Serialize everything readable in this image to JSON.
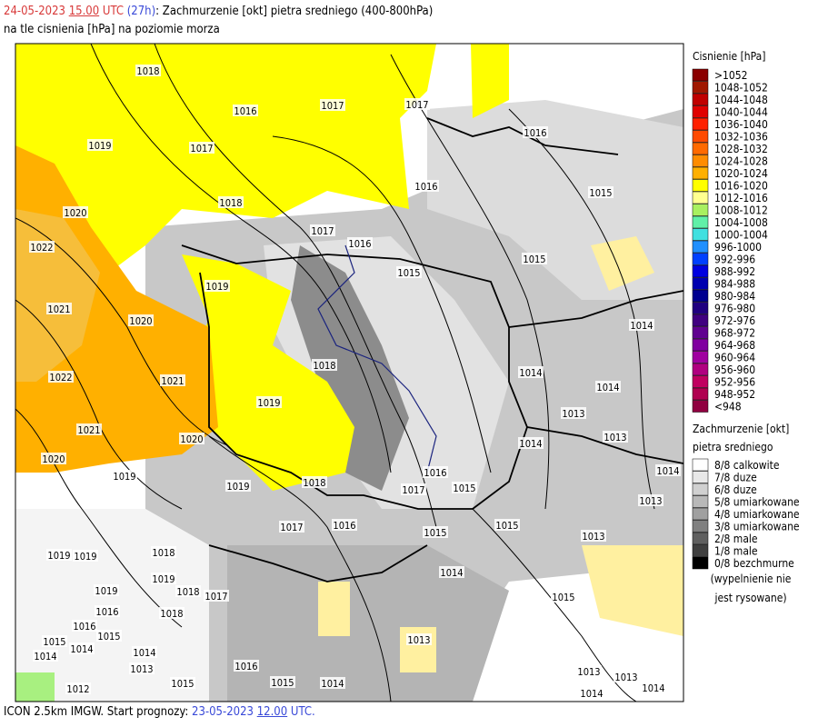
{
  "header": {
    "date": "24-05-2023",
    "time": "15.00",
    "tz": "UTC",
    "lead": "(27h)",
    "title": ": Zachmurzenie [okt] pietra sredniego (400-800hPa)",
    "subtitle": "na tle cisnienia [hPa] na poziomie morza"
  },
  "footer": {
    "model": "ICON 2.5km IMGW. Start prognozy:",
    "start_date": "23-05-2023",
    "start_time": "12.00",
    "tz": "UTC."
  },
  "isobar_labels": [
    "1018",
    "1016",
    "1017",
    "1017",
    "1016",
    "1019",
    "1017",
    "1016",
    "1015",
    "1018",
    "1020",
    "1017",
    "1016",
    "1022",
    "1015",
    "1015",
    "1019",
    "1021",
    "1020",
    "1014",
    "1018",
    "1022",
    "1021",
    "1014",
    "1014",
    "1019",
    "1013",
    "1021",
    "1020",
    "1013",
    "1014",
    "1020",
    "1019",
    "1016",
    "1014",
    "1019",
    "1018",
    "1017",
    "1015",
    "1013",
    "1017",
    "1016",
    "1015",
    "1015",
    "1013",
    "1019",
    "1019",
    "1018",
    "1014",
    "1019",
    "1019",
    "1018",
    "1017",
    "1015",
    "1016",
    "1018",
    "1016",
    "1015",
    "1013",
    "1015",
    "1014",
    "1014",
    "1014",
    "1013",
    "1016",
    "1015",
    "1015",
    "1014",
    "1013",
    "1013",
    "1012",
    "1014",
    "1014"
  ],
  "pressure_legend": {
    "title": "Cisnienie [hPa]",
    "items": [
      {
        "label": ">1052",
        "color": "#8b0000"
      },
      {
        "label": "1048-1052",
        "color": "#a01800"
      },
      {
        "label": "1044-1048",
        "color": "#c00000"
      },
      {
        "label": "1040-1044",
        "color": "#e00000"
      },
      {
        "label": "1036-1040",
        "color": "#ff2000"
      },
      {
        "label": "1032-1036",
        "color": "#ff4a00"
      },
      {
        "label": "1028-1032",
        "color": "#ff6a00"
      },
      {
        "label": "1024-1028",
        "color": "#ff8c00"
      },
      {
        "label": "1020-1024",
        "color": "#ffb000"
      },
      {
        "label": "1016-1020",
        "color": "#ffff00"
      },
      {
        "label": "1012-1016",
        "color": "#ffff90"
      },
      {
        "label": "1008-1012",
        "color": "#a8f060"
      },
      {
        "label": "1004-1008",
        "color": "#60f0a8"
      },
      {
        "label": "1000-1004",
        "color": "#40e0e0"
      },
      {
        "label": "996-1000",
        "color": "#2090ff"
      },
      {
        "label": "992-996",
        "color": "#0040ff"
      },
      {
        "label": "988-992",
        "color": "#0000e0"
      },
      {
        "label": "984-988",
        "color": "#0000b0"
      },
      {
        "label": "980-984",
        "color": "#000090"
      },
      {
        "label": "976-980",
        "color": "#200080"
      },
      {
        "label": "972-976",
        "color": "#400080"
      },
      {
        "label": "968-972",
        "color": "#600090"
      },
      {
        "label": "964-968",
        "color": "#8000a0"
      },
      {
        "label": "960-964",
        "color": "#a000a0"
      },
      {
        "label": "956-960",
        "color": "#b00080"
      },
      {
        "label": "952-956",
        "color": "#c00060"
      },
      {
        "label": "948-952",
        "color": "#b00050"
      },
      {
        "label": "<948",
        "color": "#900040"
      }
    ]
  },
  "cloud_legend": {
    "title": [
      "Zachmurzenie [okt]",
      "pietra sredniego"
    ],
    "items": [
      {
        "label": "8/8 calkowite",
        "color": "#ffffff"
      },
      {
        "label": "7/8 duze",
        "color": "#e8e8e8"
      },
      {
        "label": "6/8 duze",
        "color": "#d0d0d0"
      },
      {
        "label": "5/8 umiarkowane",
        "color": "#b8b8b8"
      },
      {
        "label": "4/8 umiarkowane",
        "color": "#a0a0a0"
      },
      {
        "label": "3/8 umiarkowane",
        "color": "#808080"
      },
      {
        "label": "2/8 male",
        "color": "#606060"
      },
      {
        "label": "1/8 male",
        "color": "#404040"
      },
      {
        "label": "0/8 bezchmurne",
        "color": "#000000"
      }
    ],
    "note": [
      "(wypelnienie nie",
      "jest rysowane)"
    ]
  }
}
